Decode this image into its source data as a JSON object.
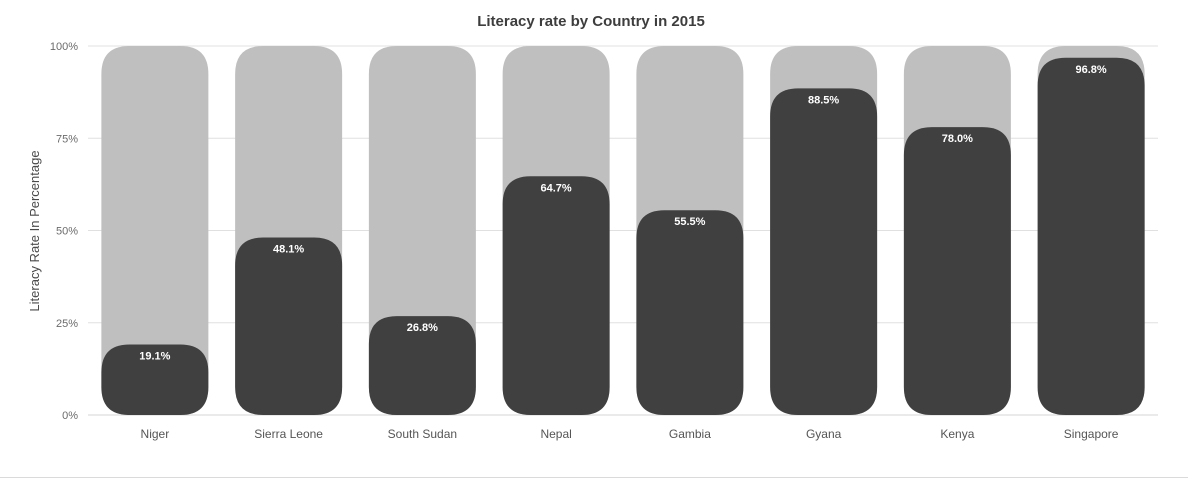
{
  "chart_data": {
    "type": "bar",
    "title": "Literacy rate by Country in 2015",
    "xlabel": "",
    "ylabel": "Literacy Rate In Percentage",
    "categories": [
      "Niger",
      "Sierra Leone",
      "South Sudan",
      "Nepal",
      "Gambia",
      "Gyana",
      "Kenya",
      "Singapore"
    ],
    "values": [
      19.1,
      48.1,
      26.8,
      64.7,
      55.5,
      88.5,
      78.0,
      96.8
    ],
    "data_labels": [
      "19.1%",
      "48.1%",
      "26.8%",
      "64.7%",
      "55.5%",
      "88.5%",
      "78.0%",
      "96.8%"
    ],
    "ylim": [
      0,
      100
    ],
    "yticks": [
      0,
      25,
      50,
      75,
      100
    ],
    "ytick_labels": [
      "0%",
      "25%",
      "50%",
      "75%",
      "100%"
    ],
    "background_track_value": 100,
    "grid": true,
    "legend": "none",
    "colors": {
      "bar": "#404040",
      "track": "#bfbfbf",
      "data_label": "#ffffff"
    }
  }
}
